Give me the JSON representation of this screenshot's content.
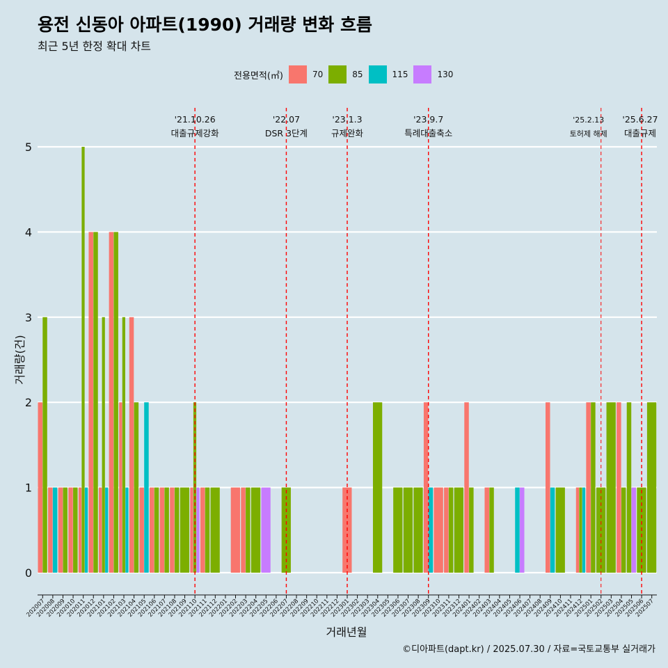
{
  "header": {
    "title": "용전 신동아 아파트(1990) 거래량 변화 흐름",
    "subtitle": "최근 5년 한정 확대 차트"
  },
  "legend": {
    "title": "전용면적(㎡)",
    "items": [
      {
        "label": "70",
        "color": "#f8766d"
      },
      {
        "label": "85",
        "color": "#7cae00"
      },
      {
        "label": "115",
        "color": "#00bfc4"
      },
      {
        "label": "130",
        "color": "#c77cff"
      }
    ]
  },
  "caption": "©디아파트(dapt.kr) / 2025.07.30 / 자료=국토교통부 실거래가",
  "chart_data": {
    "type": "bar",
    "xlabel": "거래년월",
    "ylabel": "거래량(건)",
    "ylim": [
      0,
      5
    ],
    "yticks": [
      0,
      1,
      2,
      3,
      4,
      5
    ],
    "grid": true,
    "legend_position": "top",
    "categories": [
      "202007",
      "202008",
      "202009",
      "202010",
      "202011",
      "202012",
      "202101",
      "202102",
      "202103",
      "202104",
      "202105",
      "202106",
      "202107",
      "202108",
      "202109",
      "202110",
      "202111",
      "202112",
      "202201",
      "202202",
      "202203",
      "202204",
      "202205",
      "202206",
      "202207",
      "202208",
      "202209",
      "202210",
      "202211",
      "202212",
      "202301",
      "202302",
      "202303",
      "202304",
      "202305",
      "202306",
      "202307",
      "202308",
      "202309",
      "202310",
      "202311",
      "202312",
      "202401",
      "202402",
      "202403",
      "202404",
      "202405",
      "202406",
      "202407",
      "202408",
      "202409",
      "202410",
      "202411",
      "202412",
      "202501",
      "202502",
      "202503",
      "202504",
      "202505",
      "202506",
      "202507"
    ],
    "series": [
      {
        "name": "70",
        "color": "#f8766d",
        "values": [
          2,
          1,
          1,
          1,
          1,
          4,
          1,
          4,
          2,
          3,
          1,
          1,
          1,
          1,
          0,
          1,
          1,
          0,
          0,
          1,
          1,
          0,
          0,
          0,
          0,
          0,
          0,
          0,
          0,
          0,
          1,
          0,
          0,
          0,
          0,
          0,
          0,
          0,
          2,
          1,
          1,
          0,
          2,
          0,
          1,
          0,
          0,
          0,
          0,
          0,
          2,
          0,
          0,
          1,
          2,
          0,
          0,
          2,
          0,
          0,
          0
        ]
      },
      {
        "name": "85",
        "color": "#7cae00",
        "values": [
          3,
          0,
          1,
          1,
          5,
          4,
          3,
          4,
          3,
          2,
          0,
          1,
          1,
          1,
          1,
          2,
          1,
          1,
          0,
          0,
          1,
          1,
          0,
          0,
          1,
          0,
          0,
          0,
          0,
          0,
          0,
          0,
          0,
          2,
          0,
          1,
          1,
          1,
          0,
          0,
          1,
          1,
          1,
          0,
          1,
          0,
          0,
          0,
          0,
          0,
          0,
          1,
          0,
          1,
          2,
          1,
          2,
          1,
          2,
          1,
          2
        ]
      },
      {
        "name": "115",
        "color": "#00bfc4",
        "values": [
          0,
          1,
          0,
          0,
          1,
          0,
          1,
          0,
          1,
          0,
          2,
          0,
          0,
          0,
          0,
          0,
          0,
          0,
          0,
          0,
          0,
          0,
          0,
          0,
          0,
          0,
          0,
          0,
          0,
          0,
          0,
          0,
          0,
          0,
          0,
          0,
          0,
          0,
          1,
          0,
          0,
          0,
          0,
          0,
          0,
          0,
          0,
          1,
          0,
          0,
          1,
          0,
          0,
          1,
          0,
          0,
          0,
          0,
          0,
          0,
          0
        ]
      },
      {
        "name": "130",
        "color": "#c77cff",
        "values": [
          0,
          0,
          0,
          0,
          0,
          0,
          0,
          0,
          0,
          0,
          0,
          0,
          0,
          0,
          0,
          1,
          0,
          0,
          0,
          0,
          0,
          0,
          1,
          0,
          0,
          0,
          0,
          0,
          0,
          0,
          0,
          0,
          0,
          0,
          0,
          0,
          0,
          0,
          0,
          0,
          0,
          0,
          0,
          0,
          0,
          0,
          0,
          1,
          0,
          0,
          0,
          0,
          0,
          0,
          0,
          0,
          0,
          0,
          1,
          0,
          0
        ]
      }
    ],
    "annotations": [
      {
        "x": "202110",
        "date": "'21.10.26",
        "text": "대출규제강화"
      },
      {
        "x": "202207",
        "date": "'22.07",
        "text": "DSR 3단계"
      },
      {
        "x": "202301",
        "date": "'23.1.3",
        "text": "규제완화"
      },
      {
        "x": "202309",
        "date": "'23.9.7",
        "text": "특례대출축소"
      },
      {
        "x": "202502",
        "date": "'25.2.13",
        "text": "토허제 해제"
      },
      {
        "x": "202506",
        "date": "'25.6.27",
        "text": "대출규제"
      }
    ]
  }
}
